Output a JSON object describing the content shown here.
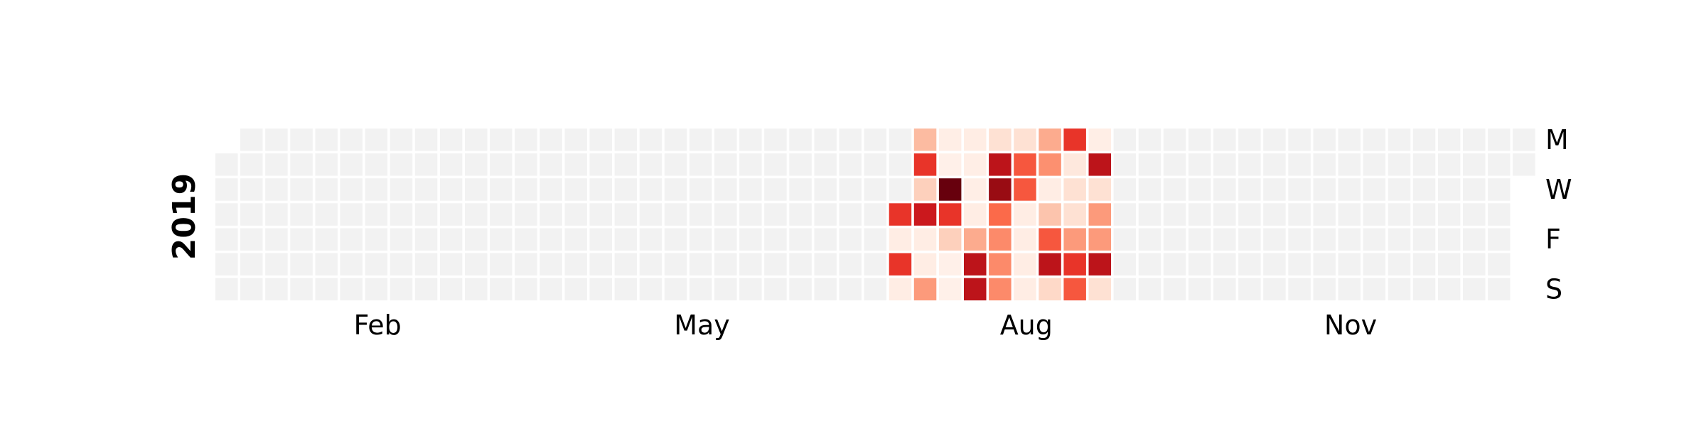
{
  "chart_data": {
    "type": "heatmap",
    "year": "2019",
    "title": "",
    "month_labels": [
      {
        "label": "Feb",
        "week": 6.5
      },
      {
        "label": "May",
        "week": 19.5
      },
      {
        "label": "Aug",
        "week": 32.5
      },
      {
        "label": "Nov",
        "week": 45.5
      }
    ],
    "weekday_labels": [
      {
        "label": "M",
        "day": 0
      },
      {
        "label": "W",
        "day": 2
      },
      {
        "label": "F",
        "day": 4
      },
      {
        "label": "S",
        "day": 6
      }
    ],
    "first_week_start_day": 1,
    "last_week_end_day": 1,
    "num_weeks": 53,
    "colormap": "Reds",
    "empty_color": "#f2f2f2",
    "active_weeks": [
      {
        "week": 27,
        "values": [
          null,
          null,
          null,
          0.65,
          0.05,
          0.65,
          0.05
        ]
      },
      {
        "week": 28,
        "values": [
          0.25,
          0.65,
          0.18,
          0.75,
          0.05,
          0.05,
          0.35
        ]
      },
      {
        "week": 29,
        "values": [
          0.04,
          0.03,
          1.0,
          0.65,
          0.18,
          0.03,
          0.03
        ]
      },
      {
        "week": 30,
        "values": [
          0.05,
          0.04,
          0.04,
          0.05,
          0.3,
          0.8,
          0.8
        ]
      },
      {
        "week": 31,
        "values": [
          0.12,
          0.8,
          0.9,
          0.5,
          0.4,
          0.4,
          0.4
        ]
      },
      {
        "week": 32,
        "values": [
          0.12,
          0.55,
          0.55,
          0.05,
          0.05,
          0.05,
          0.05
        ]
      },
      {
        "week": 33,
        "values": [
          0.3,
          0.38,
          0.05,
          0.22,
          0.55,
          0.8,
          0.15
        ]
      },
      {
        "week": 34,
        "values": [
          0.65,
          0.08,
          0.12,
          0.12,
          0.35,
          0.65,
          0.55
        ]
      },
      {
        "week": 35,
        "values": [
          0.04,
          0.8,
          0.12,
          0.35,
          0.35,
          0.8,
          0.12
        ]
      }
    ]
  }
}
